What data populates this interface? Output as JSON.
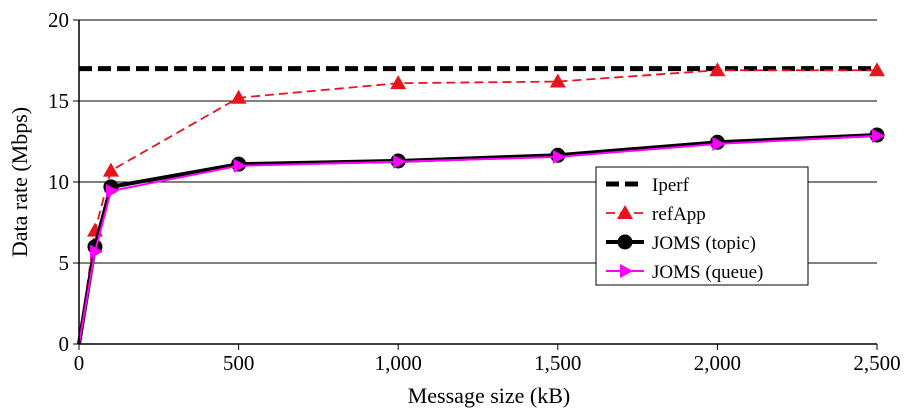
{
  "chart_data": {
    "type": "line",
    "xlabel": "Message size (kB)",
    "ylabel": "Data rate (Mbps)",
    "xlim": [
      0,
      2500
    ],
    "ylim": [
      0,
      20
    ],
    "x_ticks": [
      0,
      500,
      1000,
      1500,
      2000,
      2500
    ],
    "x_tick_labels": [
      "0",
      "500",
      "1,000",
      "1,500",
      "2,000",
      "2,500"
    ],
    "y_ticks": [
      0,
      5,
      10,
      15,
      20
    ],
    "y_tick_labels": [
      "0",
      "5",
      "10",
      "15",
      "20"
    ],
    "grid": "horizontal",
    "legend_position": "center-right",
    "series": [
      {
        "name": "Iperf",
        "color": "#000000",
        "style": "dashed",
        "marker": "none",
        "x": [
          0,
          2500
        ],
        "y": [
          17,
          17
        ]
      },
      {
        "name": "refApp",
        "color": "#e8141c",
        "style": "dashed",
        "marker": "triangle",
        "x": [
          0,
          50,
          100,
          500,
          1000,
          1500,
          2000,
          2500
        ],
        "y": [
          0,
          7.0,
          10.7,
          15.2,
          16.1,
          16.2,
          16.9,
          16.9
        ]
      },
      {
        "name": "JOMS (topic)",
        "color": "#000000",
        "style": "solid",
        "marker": "circle",
        "x": [
          0,
          50,
          100,
          500,
          1000,
          1500,
          2000,
          2500
        ],
        "y": [
          0,
          6.0,
          9.7,
          11.1,
          11.3,
          11.65,
          12.45,
          12.9
        ]
      },
      {
        "name": "JOMS (queue)",
        "color": "#ff00ff",
        "style": "solid",
        "marker": "arrow",
        "x": [
          0,
          50,
          100,
          500,
          1000,
          1500,
          2000,
          2500
        ],
        "y": [
          0,
          5.7,
          9.45,
          11.0,
          11.25,
          11.55,
          12.35,
          12.85
        ]
      }
    ]
  }
}
